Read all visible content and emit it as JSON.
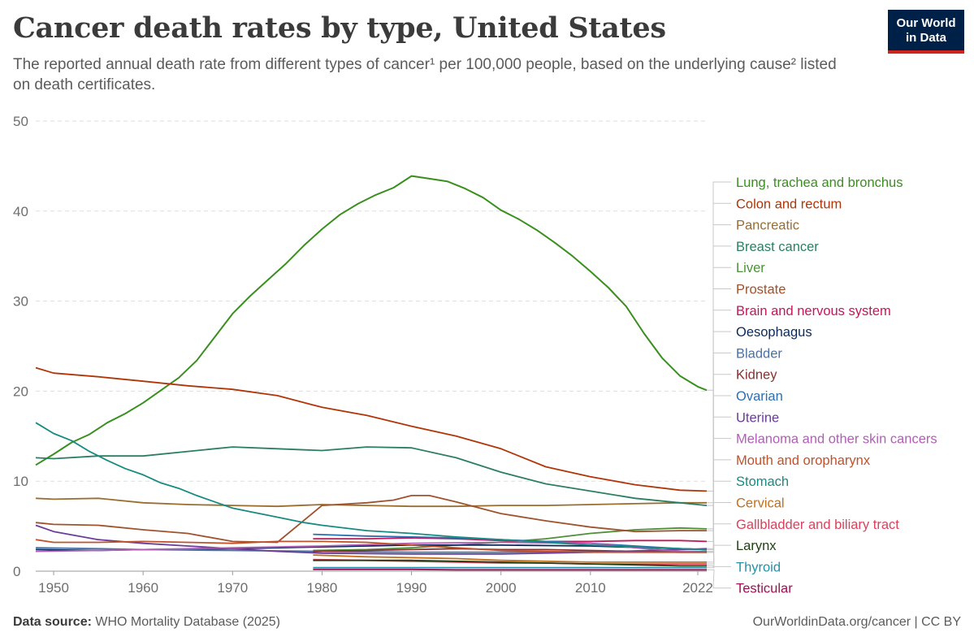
{
  "header": {
    "title": "Cancer death rates by type, United States",
    "subtitle": "The reported annual death rate from different types of cancer¹ per 100,000 people, based on the underlying cause² listed on death certificates.",
    "logo_line1": "Our World",
    "logo_line2": "in Data"
  },
  "footer": {
    "source_label": "Data source:",
    "source_text": "WHO Mortality Database (2025)",
    "right_text": "OurWorldinData.org/cancer | CC BY"
  },
  "chart_data": {
    "type": "line",
    "title": "Cancer death rates by type, United States",
    "xlabel": "",
    "ylabel": "",
    "xlim": [
      1948,
      2023
    ],
    "ylim": [
      0,
      50
    ],
    "yticks": [
      0,
      10,
      20,
      30,
      40,
      50
    ],
    "xticks": [
      1950,
      1960,
      1970,
      1980,
      1990,
      2000,
      2010,
      2022
    ],
    "grid": "horizontal-dashed",
    "legend": "right",
    "series": [
      {
        "name": "Lung, trachea and bronchus",
        "color": "#3a8f1f",
        "x": [
          1948,
          1950,
          1952,
          1954,
          1956,
          1958,
          1960,
          1962,
          1964,
          1966,
          1968,
          1970,
          1972,
          1974,
          1976,
          1978,
          1980,
          1982,
          1984,
          1986,
          1988,
          1990,
          1992,
          1994,
          1996,
          1998,
          2000,
          2002,
          2004,
          2006,
          2008,
          2010,
          2012,
          2014,
          2016,
          2018,
          2020,
          2022,
          2023
        ],
        "y": [
          11.8,
          13,
          14.3,
          15.2,
          16.5,
          17.5,
          18.7,
          20.1,
          21.5,
          23.4,
          26,
          28.6,
          30.6,
          32.4,
          34.2,
          36.2,
          38,
          39.6,
          40.8,
          41.8,
          42.6,
          43.9,
          43.6,
          43.3,
          42.5,
          41.5,
          40.1,
          39.1,
          37.9,
          36.5,
          35,
          33.3,
          31.5,
          29.4,
          26.4,
          23.7,
          21.7,
          20.5,
          20.1
        ]
      },
      {
        "name": "Colon and rectum",
        "color": "#b13507",
        "x": [
          1948,
          1950,
          1955,
          1960,
          1965,
          1970,
          1975,
          1980,
          1985,
          1990,
          1995,
          2000,
          2005,
          2010,
          2015,
          2020,
          2023
        ],
        "y": [
          22.6,
          22,
          21.6,
          21.1,
          20.6,
          20.2,
          19.5,
          18.2,
          17.3,
          16.1,
          15,
          13.6,
          11.6,
          10.5,
          9.6,
          9,
          8.9
        ]
      },
      {
        "name": "Pancreatic",
        "color": "#9a6e2e",
        "x": [
          1948,
          1950,
          1955,
          1960,
          1965,
          1970,
          1975,
          1980,
          1985,
          1990,
          1995,
          2000,
          2005,
          2010,
          2015,
          2020,
          2023
        ],
        "y": [
          8.1,
          8,
          8.1,
          7.6,
          7.4,
          7.3,
          7.2,
          7.4,
          7.3,
          7.2,
          7.2,
          7.3,
          7.3,
          7.4,
          7.5,
          7.6,
          7.6
        ]
      },
      {
        "name": "Breast cancer",
        "color": "#2a7f62",
        "x": [
          1948,
          1950,
          1955,
          1960,
          1965,
          1970,
          1975,
          1980,
          1985,
          1990,
          1995,
          2000,
          2005,
          2010,
          2015,
          2020,
          2023
        ],
        "y": [
          12.6,
          12.5,
          12.8,
          12.8,
          13.3,
          13.8,
          13.6,
          13.4,
          13.8,
          13.7,
          12.6,
          11,
          9.7,
          8.9,
          8.1,
          7.6,
          7.3
        ]
      },
      {
        "name": "Liver",
        "color": "#4e8f3a",
        "x": [
          1979,
          1985,
          1990,
          1995,
          2000,
          2005,
          2010,
          2015,
          2020,
          2023
        ],
        "y": [
          2.3,
          2.4,
          2.6,
          2.9,
          3.2,
          3.6,
          4.2,
          4.6,
          4.8,
          4.7
        ]
      },
      {
        "name": "Prostate",
        "color": "#a0522d",
        "x": [
          1948,
          1950,
          1955,
          1960,
          1965,
          1970,
          1975,
          1980,
          1985,
          1988,
          1990,
          1992,
          1995,
          2000,
          2005,
          2010,
          2015,
          2020,
          2023
        ],
        "y": [
          5.4,
          5.2,
          5.1,
          4.6,
          4.2,
          3.3,
          3.2,
          7.3,
          7.6,
          7.9,
          8.4,
          8.4,
          7.7,
          6.4,
          5.6,
          4.9,
          4.4,
          4.5,
          4.5
        ]
      },
      {
        "name": "Brain and nervous system",
        "color": "#c2175b",
        "x": [
          1979,
          1985,
          1990,
          1995,
          2000,
          2005,
          2010,
          2015,
          2020,
          2023
        ],
        "y": [
          3.6,
          3.6,
          3.7,
          3.6,
          3.4,
          3.3,
          3.3,
          3.4,
          3.4,
          3.3
        ]
      },
      {
        "name": "Oesophagus",
        "color": "#0b2a5b",
        "x": [
          1948,
          1955,
          1960,
          1970,
          1980,
          1990,
          2000,
          2010,
          2020,
          2023
        ],
        "y": [
          2.4,
          2.3,
          2.4,
          2.5,
          2.7,
          2.9,
          2.9,
          2.8,
          2.5,
          2.4
        ]
      },
      {
        "name": "Bladder",
        "color": "#4a72a8",
        "x": [
          1948,
          1955,
          1960,
          1970,
          1980,
          1990,
          2000,
          2010,
          2020,
          2023
        ],
        "y": [
          2.6,
          2.5,
          2.4,
          2.3,
          2.2,
          2.1,
          2.1,
          2.2,
          2.2,
          2.2
        ]
      },
      {
        "name": "Kidney",
        "color": "#8b2f2f",
        "x": [
          1979,
          1985,
          1990,
          1995,
          2000,
          2005,
          2010,
          2015,
          2020,
          2023
        ],
        "y": [
          2.2,
          2.3,
          2.4,
          2.5,
          2.4,
          2.4,
          2.3,
          2.2,
          2.1,
          2.1
        ]
      },
      {
        "name": "Ovarian",
        "color": "#2c6fb0",
        "x": [
          1979,
          1985,
          1990,
          1995,
          2000,
          2005,
          2010,
          2015,
          2020,
          2023
        ],
        "y": [
          4.1,
          3.9,
          3.8,
          3.7,
          3.5,
          3.3,
          3.1,
          2.8,
          2.5,
          2.4
        ]
      },
      {
        "name": "Uterine",
        "color": "#6a3d9a",
        "x": [
          1948,
          1950,
          1955,
          1960,
          1965,
          1970,
          1975,
          1980,
          1990,
          2000,
          2010,
          2020,
          2023
        ],
        "y": [
          5.1,
          4.4,
          3.5,
          3.1,
          2.8,
          2.5,
          2.2,
          2.0,
          1.9,
          1.9,
          2.1,
          2.4,
          2.5
        ]
      },
      {
        "name": "Melanoma and other skin cancers",
        "color": "#b05fb5",
        "x": [
          1948,
          1955,
          1960,
          1970,
          1980,
          1990,
          2000,
          2010,
          2015,
          2020,
          2023
        ],
        "y": [
          2.2,
          2.3,
          2.4,
          2.6,
          2.8,
          3.1,
          3.2,
          3.1,
          2.6,
          2.2,
          2.1
        ]
      },
      {
        "name": "Mouth and oropharynx",
        "color": "#c0522b",
        "x": [
          1948,
          1950,
          1955,
          1960,
          1965,
          1970,
          1975,
          1980,
          1985,
          1990,
          1995,
          2000,
          2010,
          2020,
          2023
        ],
        "y": [
          3.5,
          3.2,
          3.2,
          3.3,
          3.2,
          3.1,
          3.3,
          3.3,
          3.2,
          2.9,
          2.6,
          2.3,
          2.1,
          2.1,
          2.1
        ]
      },
      {
        "name": "Stomach",
        "color": "#188a82",
        "x": [
          1948,
          1950,
          1952,
          1954,
          1956,
          1958,
          1960,
          1962,
          1964,
          1966,
          1968,
          1970,
          1972,
          1974,
          1976,
          1978,
          1980,
          1985,
          1990,
          1995,
          2000,
          2005,
          2010,
          2015,
          2020,
          2023
        ],
        "y": [
          16.5,
          15.3,
          14.5,
          13.3,
          12.3,
          11.4,
          10.7,
          9.8,
          9.2,
          8.4,
          7.7,
          7.0,
          6.6,
          6.2,
          5.8,
          5.4,
          5.1,
          4.5,
          4.2,
          3.8,
          3.5,
          3.2,
          2.9,
          2.7,
          2.5,
          2.4
        ]
      },
      {
        "name": "Cervical",
        "color": "#c46f1a",
        "x": [
          1979,
          1985,
          1990,
          1995,
          2000,
          2005,
          2010,
          2015,
          2020,
          2023
        ],
        "y": [
          1.8,
          1.6,
          1.5,
          1.4,
          1.2,
          1.1,
          1.0,
          1.0,
          1.0,
          1.0
        ]
      },
      {
        "name": "Gallbladder and biliary tract",
        "color": "#d9425c",
        "x": [
          1979,
          1985,
          1990,
          1995,
          2000,
          2005,
          2010,
          2015,
          2020,
          2023
        ],
        "y": [
          1.3,
          1.2,
          1.1,
          1.0,
          0.9,
          0.9,
          0.8,
          0.8,
          0.8,
          0.8
        ]
      },
      {
        "name": "Larynx",
        "color": "#1f3f12",
        "x": [
          1979,
          1985,
          1990,
          1995,
          2000,
          2005,
          2010,
          2015,
          2020,
          2023
        ],
        "y": [
          1.2,
          1.2,
          1.2,
          1.1,
          1.0,
          0.9,
          0.8,
          0.7,
          0.6,
          0.6
        ]
      },
      {
        "name": "Thyroid",
        "color": "#2591a8",
        "x": [
          1979,
          1985,
          1990,
          1995,
          2000,
          2005,
          2010,
          2015,
          2020,
          2023
        ],
        "y": [
          0.4,
          0.4,
          0.4,
          0.4,
          0.4,
          0.4,
          0.4,
          0.4,
          0.4,
          0.4
        ]
      },
      {
        "name": "Testicular",
        "color": "#9e1055",
        "x": [
          1979,
          1985,
          1990,
          1995,
          2000,
          2005,
          2010,
          2015,
          2020,
          2023
        ],
        "y": [
          0.2,
          0.2,
          0.2,
          0.15,
          0.15,
          0.15,
          0.15,
          0.15,
          0.15,
          0.15
        ]
      }
    ]
  }
}
